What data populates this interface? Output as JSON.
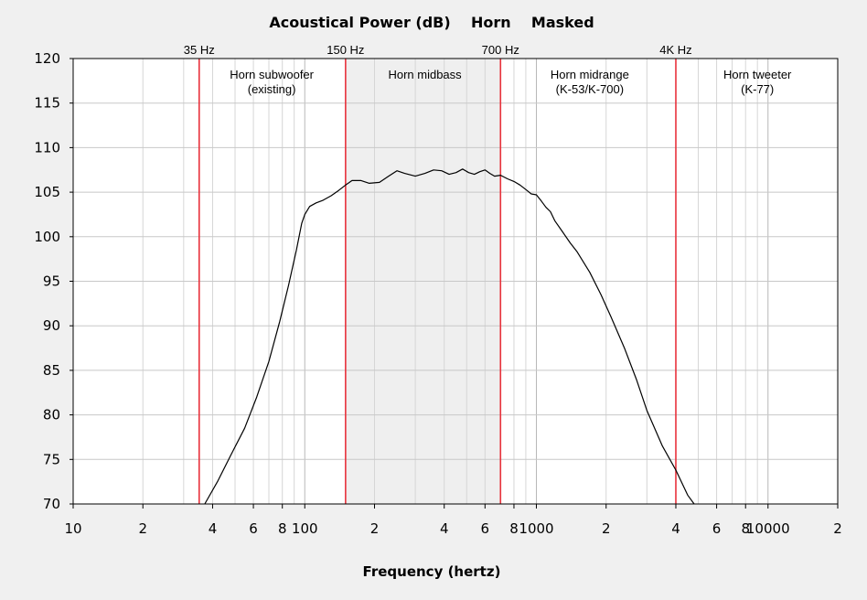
{
  "chart_data": {
    "type": "line",
    "title": "Acoustical Power (dB)    Horn    Masked",
    "xlabel": "Frequency (hertz)",
    "ylabel": "",
    "xscale": "log",
    "xlim": [
      10,
      20000
    ],
    "ylim": [
      70,
      120
    ],
    "grid": true,
    "y_ticks": [
      70,
      75,
      80,
      85,
      90,
      95,
      100,
      105,
      110,
      115,
      120
    ],
    "x_tick_labels": [
      {
        "value": 10,
        "label": "10"
      },
      {
        "value": 20,
        "label": "2"
      },
      {
        "value": 40,
        "label": "4"
      },
      {
        "value": 60,
        "label": "6"
      },
      {
        "value": 80,
        "label": "8"
      },
      {
        "value": 100,
        "label": "100"
      },
      {
        "value": 200,
        "label": "2"
      },
      {
        "value": 400,
        "label": "4"
      },
      {
        "value": 600,
        "label": "6"
      },
      {
        "value": 800,
        "label": "8"
      },
      {
        "value": 1000,
        "label": "1000"
      },
      {
        "value": 2000,
        "label": "2"
      },
      {
        "value": 4000,
        "label": "4"
      },
      {
        "value": 6000,
        "label": "6"
      },
      {
        "value": 8000,
        "label": "8"
      },
      {
        "value": 10000,
        "label": "10000"
      },
      {
        "value": 20000,
        "label": "2"
      }
    ],
    "shaded_band": {
      "from": 150,
      "to": 700,
      "color": "#e4e4e4"
    },
    "crossovers": [
      {
        "freq": 35,
        "label": "35 Hz"
      },
      {
        "freq": 150,
        "label": "150 Hz"
      },
      {
        "freq": 700,
        "label": "700 Hz"
      },
      {
        "freq": 4000,
        "label": "4K Hz"
      }
    ],
    "regions": [
      {
        "lines": [
          "Horn subwoofer",
          "(existing)"
        ],
        "freq": 72
      },
      {
        "lines": [
          "Horn midbass"
        ],
        "freq": 330
      },
      {
        "lines": [
          "Horn midrange",
          "(K-53/K-700)"
        ],
        "freq": 1700
      },
      {
        "lines": [
          "Horn tweeter",
          "(K-77)"
        ],
        "freq": 9000
      }
    ],
    "series": [
      {
        "color": "#000000",
        "x": [
          37,
          42,
          48,
          55,
          62,
          70,
          78,
          85,
          92,
          97,
          100,
          105,
          112,
          120,
          130,
          140,
          150,
          160,
          175,
          190,
          210,
          230,
          250,
          270,
          300,
          330,
          360,
          390,
          420,
          450,
          480,
          510,
          540,
          570,
          600,
          630,
          660,
          700,
          750,
          800,
          850,
          900,
          950,
          1000,
          1050,
          1100,
          1150,
          1200,
          1300,
          1400,
          1500,
          1700,
          1900,
          2100,
          2400,
          2700,
          3000,
          3500,
          4000,
          4500,
          4800
        ],
        "y": [
          70,
          72.5,
          75.5,
          78.5,
          82,
          86,
          90.5,
          94.5,
          98.5,
          101.5,
          102.5,
          103.4,
          103.8,
          104.1,
          104.6,
          105.2,
          105.8,
          106.3,
          106.3,
          106.0,
          106.1,
          106.8,
          107.4,
          107.1,
          106.8,
          107.1,
          107.5,
          107.4,
          107.0,
          107.2,
          107.6,
          107.2,
          107.0,
          107.3,
          107.5,
          107.1,
          106.8,
          106.9,
          106.5,
          106.2,
          105.8,
          105.3,
          104.8,
          104.7,
          104.0,
          103.3,
          102.8,
          101.8,
          100.5,
          99.3,
          98.3,
          96.0,
          93.5,
          91.0,
          87.5,
          84.0,
          80.5,
          76.5,
          73.8,
          71.0,
          70
        ]
      }
    ]
  }
}
